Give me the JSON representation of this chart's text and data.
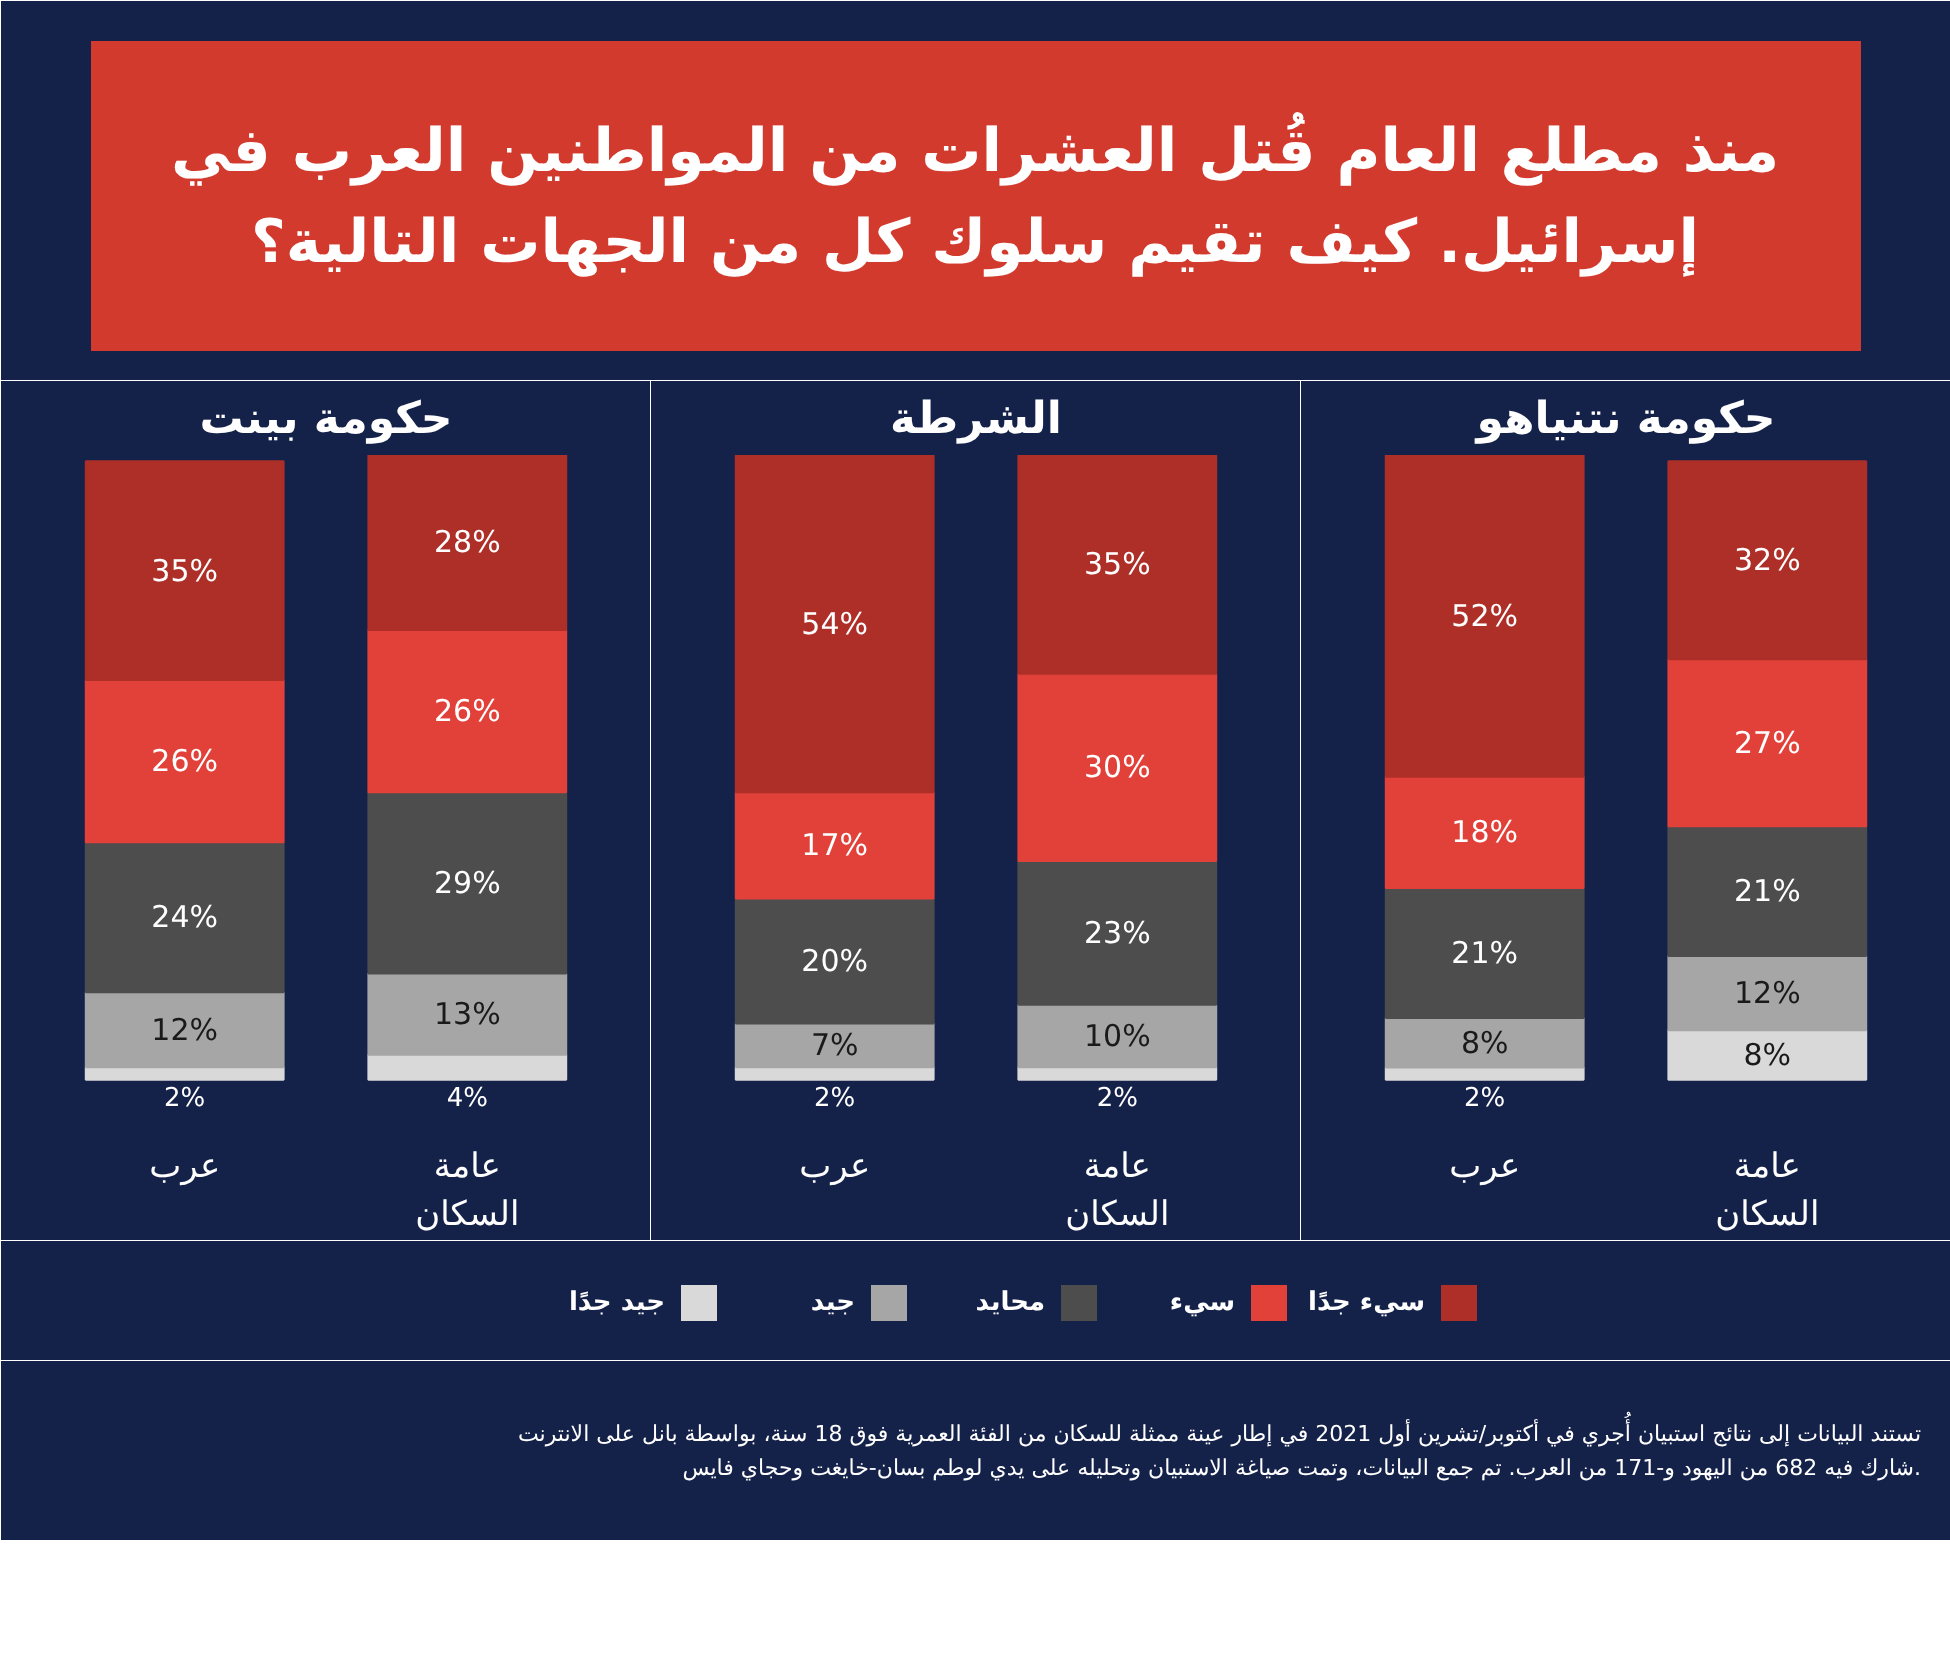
{
  "chart_data": [
    {
      "type": "bar",
      "stacked": true,
      "legend": "bottom",
      "title": "حكومة نتنياهو",
      "categories": [
        "عرب",
        "عامة\nالسكان"
      ],
      "series": [
        {
          "name": "جيد جدًا",
          "color": "#d9d9d9",
          "values": [
            2,
            8
          ],
          "value_labels": [
            "2%",
            "8%"
          ]
        },
        {
          "name": "جيد",
          "color": "#a6a6a6",
          "values": [
            8,
            12
          ],
          "value_labels": [
            "8%",
            "12%"
          ]
        },
        {
          "name": "محايد",
          "color": "#4d4d4d",
          "values": [
            21,
            21
          ],
          "value_labels": [
            "21%",
            "21%"
          ]
        },
        {
          "name": "سيء",
          "color": "#e2413a",
          "values": [
            18,
            27
          ],
          "value_labels": [
            "18%",
            "27%"
          ]
        },
        {
          "name": "سيء جدًا",
          "color": "#ad2f28",
          "values": [
            52,
            32
          ],
          "value_labels": [
            "52%",
            "32%"
          ]
        }
      ],
      "annotations": [
        "منذ مطلع العام قُتل العشرات من المواطنين العرب في\nإسرائيل. كيف تقيم سلوك كل من الجهات التالية؟",
        "تستند البيانات إلى نتائج استبيان أُجري في أكتوبر/تشرين أول 2021 في إطار عينة ممثلة للسكان من الفئة العمرية فوق 18 سنة، بواسطة بانل على الانترنت\nشارك فيه 682 من اليهود و-171 من العرب. تم جمع البيانات، وتمت صياغة الاستبيان وتحليله على يدي لوطم بسان-خايغت وحجاي فايس."
      ]
    },
    {
      "type": "bar",
      "stacked": true,
      "title": "الشرطة",
      "categories": [
        "عرب",
        "عامة\nالسكان"
      ],
      "series": [
        {
          "color": "#d9d9d9",
          "values": [
            2,
            2
          ],
          "value_labels": [
            "2%",
            "2%"
          ]
        },
        {
          "color": "#a6a6a6",
          "values": [
            7,
            10
          ],
          "value_labels": [
            "7%",
            "10%"
          ]
        },
        {
          "color": "#4d4d4d",
          "values": [
            20,
            23
          ],
          "value_labels": [
            "20%",
            "23%"
          ]
        },
        {
          "color": "#e2413a",
          "values": [
            17,
            30
          ],
          "value_labels": [
            "17%",
            "30%"
          ]
        },
        {
          "color": "#ad2f28",
          "values": [
            54,
            35
          ],
          "value_labels": [
            "54%",
            "35%"
          ]
        }
      ]
    },
    {
      "type": "bar",
      "stacked": true,
      "title": "حكومة بينت",
      "categories": [
        "عرب",
        "عامة\nالسكان"
      ],
      "series": [
        {
          "color": "#d9d9d9",
          "values": [
            2,
            4
          ],
          "value_labels": [
            "2%",
            "4%"
          ]
        },
        {
          "color": "#a6a6a6",
          "values": [
            12,
            13
          ],
          "value_labels": [
            "12%",
            "13%"
          ]
        },
        {
          "color": "#4d4d4d",
          "values": [
            24,
            29
          ],
          "value_labels": [
            "24%",
            "29%"
          ]
        },
        {
          "color": "#e2413a",
          "values": [
            26,
            26
          ],
          "value_labels": [
            "26%",
            "26%"
          ]
        },
        {
          "color": "#ad2f28",
          "values": [
            35,
            28
          ],
          "value_labels": [
            "35%",
            "28%"
          ]
        }
      ]
    }
  ]
}
